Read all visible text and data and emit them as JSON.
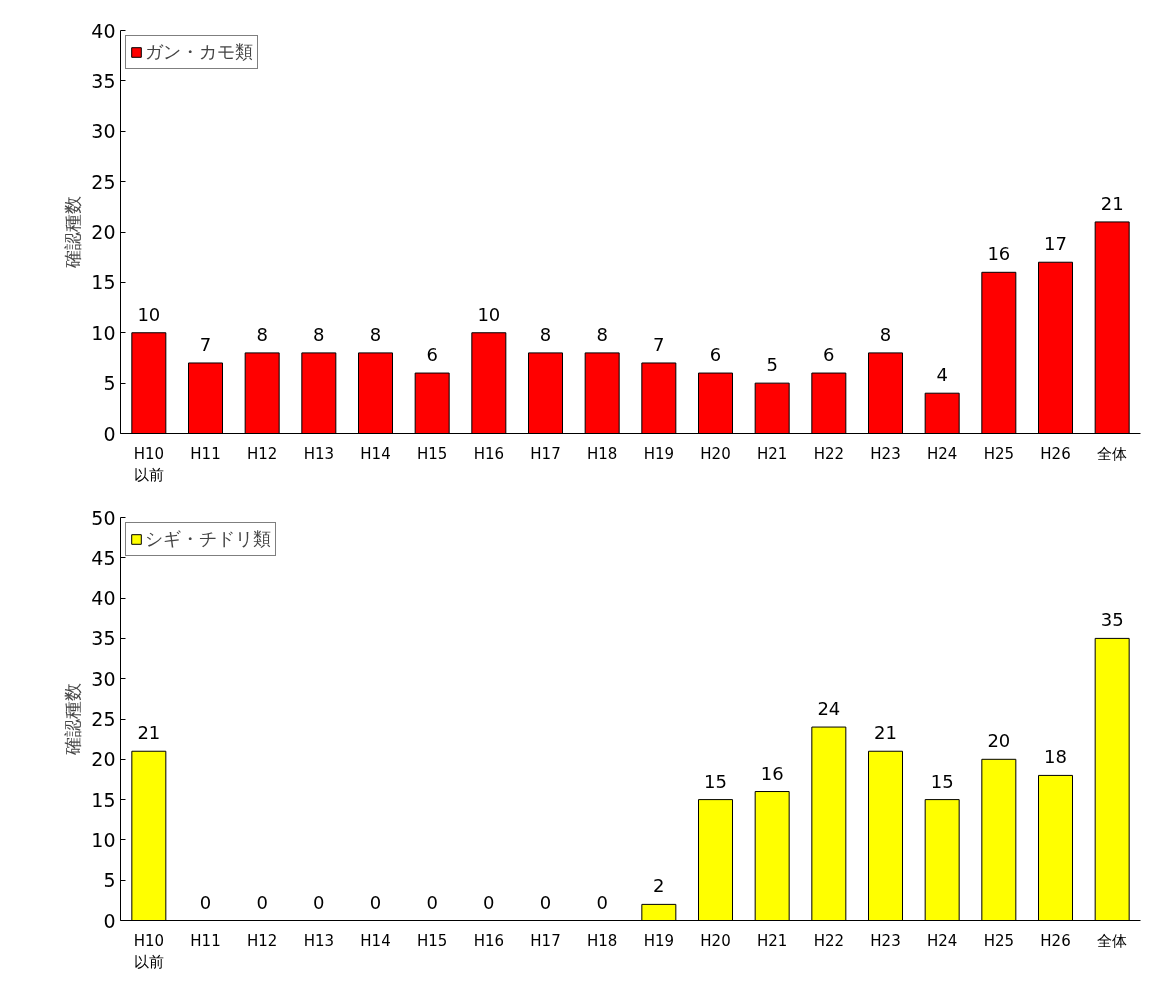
{
  "chart_data": [
    {
      "type": "bar",
      "ylabel": "確認種数",
      "categories": [
        "H10\n以前",
        "H11",
        "H12",
        "H13",
        "H14",
        "H15",
        "H16",
        "H17",
        "H18",
        "H19",
        "H20",
        "H21",
        "H22",
        "H23",
        "H24",
        "H25",
        "H26",
        "全体"
      ],
      "series": [
        {
          "name": "ガン・カモ類",
          "color": "#ff0000",
          "values": [
            10,
            7,
            8,
            8,
            8,
            6,
            10,
            8,
            8,
            7,
            6,
            5,
            6,
            8,
            4,
            16,
            17,
            21
          ]
        }
      ],
      "ylim": [
        0,
        40
      ],
      "yticks": [
        0,
        5,
        10,
        15,
        20,
        25,
        30,
        35,
        40
      ],
      "data_labels": true,
      "legend": "top left",
      "grid": false
    },
    {
      "type": "bar",
      "ylabel": "確認種数",
      "categories": [
        "H10\n以前",
        "H11",
        "H12",
        "H13",
        "H14",
        "H15",
        "H16",
        "H17",
        "H18",
        "H19",
        "H20",
        "H21",
        "H22",
        "H23",
        "H24",
        "H25",
        "H26",
        "全体"
      ],
      "series": [
        {
          "name": "シギ・チドリ類",
          "color": "#ffff00",
          "values": [
            21,
            0,
            0,
            0,
            0,
            0,
            0,
            0,
            0,
            2,
            15,
            16,
            24,
            21,
            15,
            20,
            18,
            35
          ]
        }
      ],
      "ylim": [
        0,
        50
      ],
      "yticks": [
        0,
        5,
        10,
        15,
        20,
        25,
        30,
        35,
        40,
        45,
        50
      ],
      "data_labels": true,
      "legend": "top left",
      "grid": false
    }
  ]
}
